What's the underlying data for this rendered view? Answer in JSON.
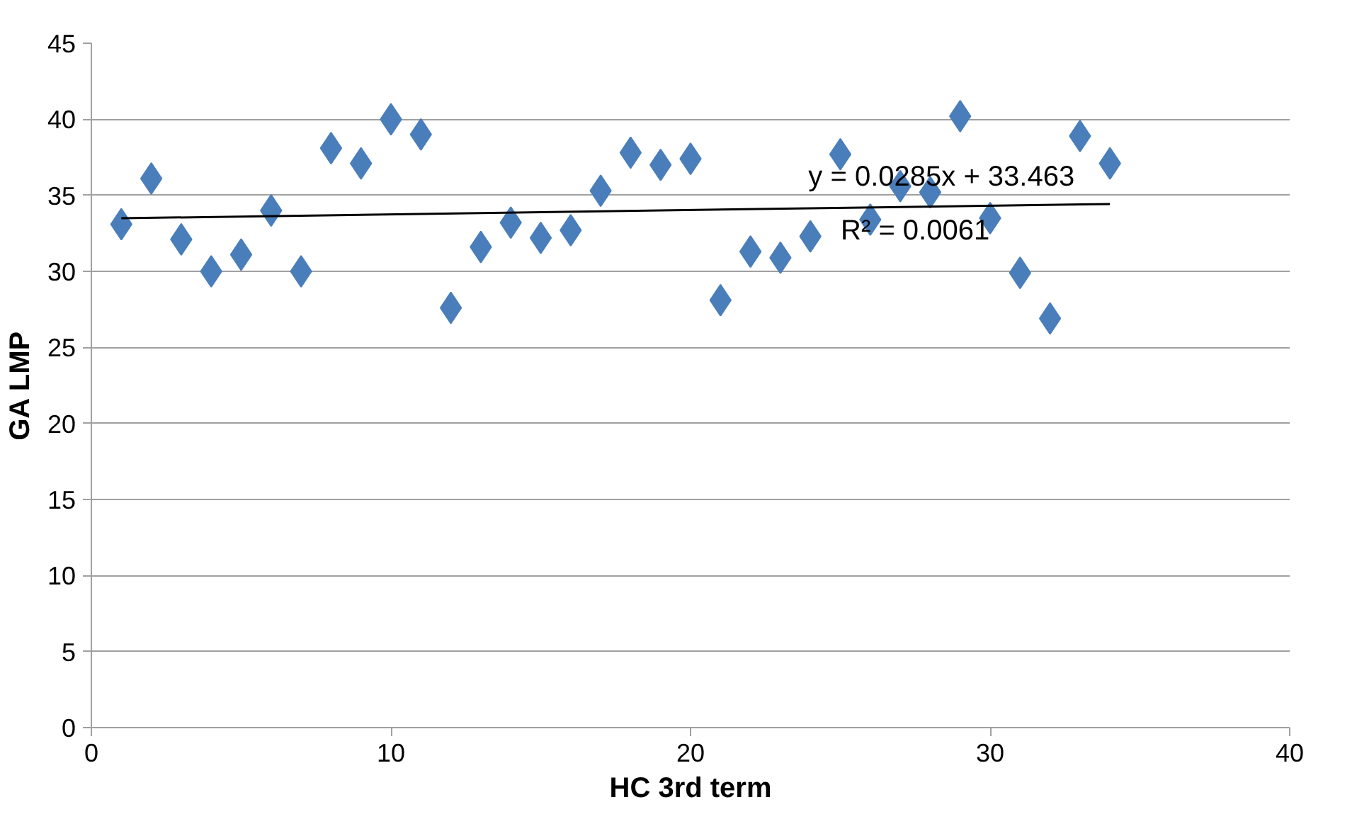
{
  "chart_data": {
    "type": "scatter",
    "xlabel": "HC 3rd term",
    "ylabel": "GA LMP",
    "xlim": [
      0,
      40
    ],
    "xticks": [
      0,
      10,
      20,
      30,
      40
    ],
    "ylim": [
      0,
      45
    ],
    "yticks": [
      0,
      5,
      10,
      15,
      20,
      25,
      30,
      35,
      40,
      45
    ],
    "grid": "y",
    "marker": "diamond",
    "annotations": [
      "y = 0.0285x + 33.463",
      "R² = 0.0061"
    ],
    "series": [
      {
        "color": "#4a7ebb",
        "x": [
          1,
          2,
          3,
          4,
          5,
          6,
          7,
          8,
          9,
          10,
          11,
          12,
          13,
          14,
          15,
          16,
          17,
          18,
          19,
          20,
          21,
          22,
          23,
          24,
          25,
          26,
          27,
          28,
          29,
          30,
          31,
          32,
          33,
          34
        ],
        "values": [
          33.1,
          36.1,
          32.1,
          30.0,
          31.1,
          34.0,
          30.0,
          38.1,
          37.1,
          40.0,
          39.0,
          27.6,
          31.6,
          33.2,
          32.2,
          32.7,
          35.3,
          37.8,
          37.0,
          37.4,
          28.1,
          31.3,
          30.9,
          32.3,
          37.7,
          33.4,
          35.6,
          35.2,
          40.2,
          33.5,
          29.9,
          26.9,
          38.9,
          37.1
        ]
      },
      {
        "type": "line",
        "color": "#000000",
        "marker": "none",
        "x": [
          1,
          34
        ],
        "values": [
          33.49,
          34.43
        ]
      }
    ]
  }
}
